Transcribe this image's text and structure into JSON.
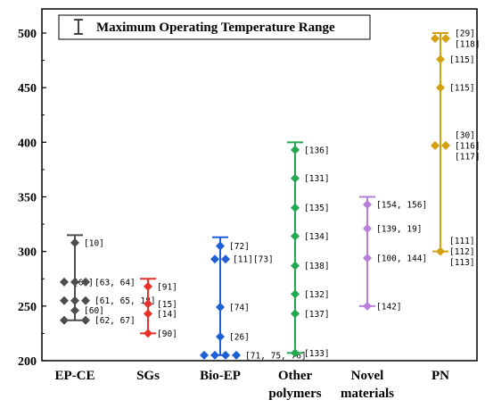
{
  "chart_data": {
    "type": "range",
    "legend": {
      "label": "Maximum Operating Temperature Range",
      "position": "top-left"
    },
    "ylim": [
      200,
      510
    ],
    "yticks": [
      200,
      250,
      300,
      350,
      400,
      450,
      500
    ],
    "grid": false,
    "series": [
      {
        "category": "EP-CE",
        "color": "#4d4d4d",
        "range": [
          237,
          315
        ],
        "points": [
          {
            "y": 308,
            "x_offset": 0,
            "label": "[10]"
          },
          {
            "y": 272,
            "x_offset": -1,
            "label": "[66]"
          },
          {
            "y": 272,
            "x_offset": 0,
            "label": ""
          },
          {
            "y": 272,
            "x_offset": 1,
            "label": "[63, 64]"
          },
          {
            "y": 255,
            "x_offset": -1,
            "label": ""
          },
          {
            "y": 255,
            "x_offset": 0,
            "label": ""
          },
          {
            "y": 255,
            "x_offset": 1,
            "label": "[61, 65, 18]"
          },
          {
            "y": 246,
            "x_offset": 0,
            "label": "[60]"
          },
          {
            "y": 237,
            "x_offset": -1,
            "label": ""
          },
          {
            "y": 237,
            "x_offset": 1,
            "label": "[62, 67]"
          }
        ]
      },
      {
        "category": "SGs",
        "color": "#e8312a",
        "range": [
          225,
          275
        ],
        "points": [
          {
            "y": 268,
            "x_offset": 0,
            "label": "[91]"
          },
          {
            "y": 252,
            "x_offset": 0,
            "label": "[15]"
          },
          {
            "y": 243,
            "x_offset": 0,
            "label": "[14]"
          },
          {
            "y": 225,
            "x_offset": 0,
            "label": "[90]"
          }
        ]
      },
      {
        "category": "Bio-EP",
        "color": "#1f5fd6",
        "range": [
          205,
          313
        ],
        "points": [
          {
            "y": 305,
            "x_offset": 0,
            "label": "[72]"
          },
          {
            "y": 293,
            "x_offset": -0.5,
            "label": ""
          },
          {
            "y": 293,
            "x_offset": 0.5,
            "label": "[11] [73]"
          },
          {
            "y": 249,
            "x_offset": 0,
            "label": "[74]"
          },
          {
            "y": 222,
            "x_offset": 0,
            "label": "[26]"
          },
          {
            "y": 205,
            "x_offset": -1.5,
            "label": ""
          },
          {
            "y": 205,
            "x_offset": -0.5,
            "label": ""
          },
          {
            "y": 205,
            "x_offset": 0.5,
            "label": ""
          },
          {
            "y": 205,
            "x_offset": 1.5,
            "label": "[71, 75, 76]"
          }
        ]
      },
      {
        "category": "Other polymers",
        "color": "#22a851",
        "range": [
          207,
          400
        ],
        "points": [
          {
            "y": 393,
            "x_offset": 0,
            "label": "[136]"
          },
          {
            "y": 367,
            "x_offset": 0,
            "label": "[131]"
          },
          {
            "y": 340,
            "x_offset": 0,
            "label": "[135]"
          },
          {
            "y": 314,
            "x_offset": 0,
            "label": "[134]"
          },
          {
            "y": 287,
            "x_offset": 0,
            "label": "[138]"
          },
          {
            "y": 261,
            "x_offset": 0,
            "label": "[132]"
          },
          {
            "y": 243,
            "x_offset": 0,
            "label": "[137]"
          },
          {
            "y": 207,
            "x_offset": 0,
            "label": "[133]"
          }
        ]
      },
      {
        "category": "Novel materials",
        "color": "#b77fd9",
        "range": [
          250,
          350
        ],
        "points": [
          {
            "y": 343,
            "x_offset": 0,
            "label": "[154, 156]"
          },
          {
            "y": 321,
            "x_offset": 0,
            "label": "[139, 19]"
          },
          {
            "y": 294,
            "x_offset": 0,
            "label": "[100, 144]"
          },
          {
            "y": 250,
            "x_offset": 0,
            "label": "[142]"
          }
        ]
      },
      {
        "category": "PN",
        "color": "#d4a010",
        "range": [
          300,
          500
        ],
        "points": [
          {
            "y": 495,
            "x_offset": -0.5,
            "label": ""
          },
          {
            "y": 495,
            "x_offset": 0.5,
            "label": "[29] [118]"
          },
          {
            "y": 476,
            "x_offset": 0,
            "label": "[115]"
          },
          {
            "y": 450,
            "x_offset": 0,
            "label": "[115]"
          },
          {
            "y": 397,
            "x_offset": -0.5,
            "label": ""
          },
          {
            "y": 397,
            "x_offset": 0.5,
            "label": "[30] [116] [117]"
          },
          {
            "y": 300,
            "x_offset": 0,
            "label": "[111] [112] [113]"
          }
        ]
      }
    ],
    "category_labels": [
      [
        "EP-CE"
      ],
      [
        "SGs"
      ],
      [
        "Bio-EP"
      ],
      [
        "Other",
        "polymers"
      ],
      [
        "Novel",
        "materials"
      ],
      [
        "PN"
      ]
    ]
  }
}
